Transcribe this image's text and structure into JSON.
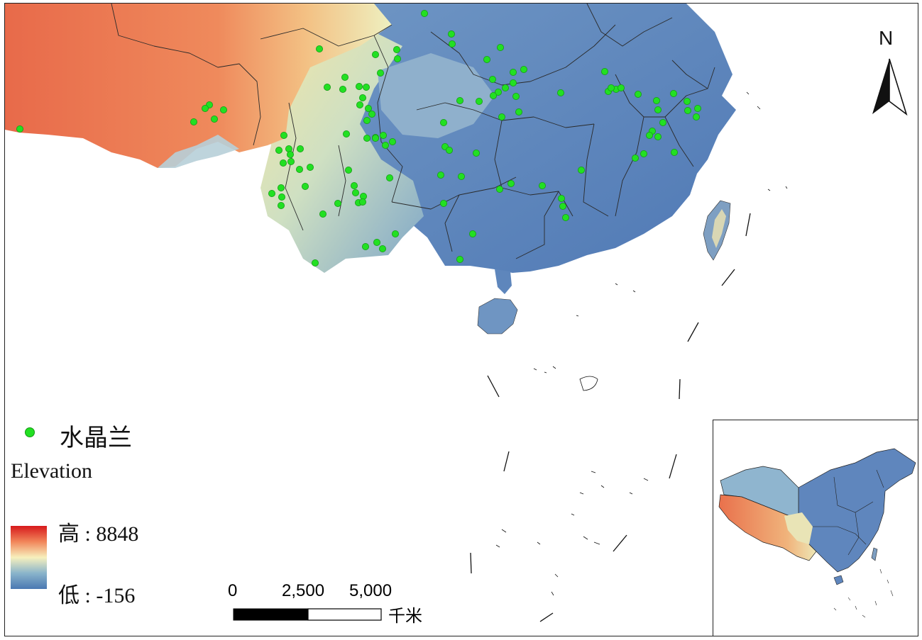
{
  "legend": {
    "species_label": "水晶兰",
    "elevation_title": "Elevation",
    "high_label": "高 : 8848",
    "low_label": "低 : -156",
    "point_color": "#22e022"
  },
  "elevation_ramp": [
    "#d7191c",
    "#f1855a",
    "#f7f0bd",
    "#8ab4cb",
    "#4a78b2"
  ],
  "scale": {
    "ticks": [
      "0",
      "2,500",
      "5,000"
    ],
    "unit": "千米"
  },
  "north_arrow": {
    "letter": "N",
    "icon": "north-arrow-icon"
  },
  "inset": {
    "name": "china-overview-map"
  }
}
